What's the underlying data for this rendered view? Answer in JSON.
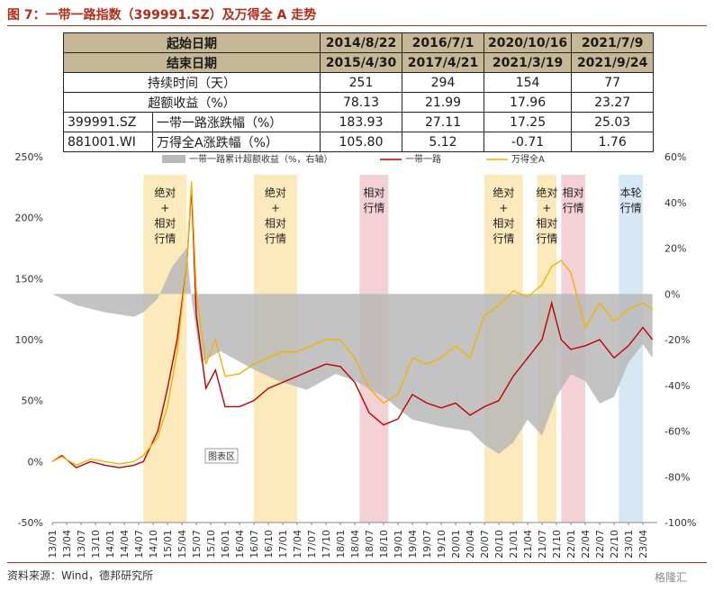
{
  "header": {
    "title": "图 7：一带一路指数（399991.SZ）及万得全 A 走势"
  },
  "table": {
    "rows": [
      {
        "label": "起始日期",
        "values": [
          "2014/8/22",
          "2016/7/1",
          "2020/10/16",
          "2021/7/9"
        ]
      },
      {
        "label": "结束日期",
        "values": [
          "2015/4/30",
          "2017/4/21",
          "2021/3/19",
          "2021/9/24"
        ]
      },
      {
        "label": "持续时间（天）",
        "values": [
          "251",
          "294",
          "154",
          "77"
        ]
      },
      {
        "label": "超额收益（%）",
        "values": [
          "78.13",
          "21.99",
          "17.96",
          "23.27"
        ]
      },
      {
        "code": "399991.SZ",
        "label": "一带一路涨跌幅（%）",
        "values": [
          "183.93",
          "27.11",
          "17.25",
          "25.03"
        ]
      },
      {
        "code": "881001.WI",
        "label": "万得全A涨跌幅（%）",
        "values": [
          "105.80",
          "5.12",
          "-0.71",
          "1.76"
        ]
      }
    ]
  },
  "footer": {
    "source": "资料来源：Wind，德邦研究所",
    "watermark": "格隆汇"
  },
  "chart_data": {
    "type": "line",
    "legend": [
      "一带一路累计超额收益（%，右轴）",
      "一带一路",
      "万得全A"
    ],
    "legend_placement": "top",
    "colors": {
      "excess": "#b9b9b9",
      "belt": "#c00000",
      "wind": "#f0b400",
      "band_yellow": "#fbe6b0",
      "band_red": "#f2c9cf",
      "band_blue": "#cfe4f2"
    },
    "left_axis": {
      "range": [
        -50,
        250
      ],
      "ticks": [
        "-50%",
        "0%",
        "50%",
        "100%",
        "150%",
        "200%",
        "250%"
      ]
    },
    "right_axis": {
      "range": [
        -100,
        60
      ],
      "ticks": [
        "-100%",
        "-80%",
        "-60%",
        "-40%",
        "-20%",
        "0%",
        "20%",
        "40%",
        "60%"
      ]
    },
    "x_ticks": [
      "13/01",
      "13/04",
      "13/07",
      "13/10",
      "14/01",
      "14/04",
      "14/07",
      "14/10",
      "15/01",
      "15/04",
      "15/07",
      "15/10",
      "16/01",
      "16/04",
      "16/07",
      "16/10",
      "17/01",
      "17/04",
      "17/07",
      "17/10",
      "18/01",
      "18/04",
      "18/07",
      "18/10",
      "19/01",
      "19/04",
      "19/07",
      "19/10",
      "20/01",
      "20/04",
      "20/07",
      "20/10",
      "21/01",
      "21/04",
      "21/07",
      "21/10",
      "22/01",
      "22/04",
      "22/07",
      "22/10",
      "23/01",
      "23/04"
    ],
    "x_end": "23/07",
    "bands": [
      {
        "start": "14/08",
        "end": "15/05",
        "color": "yellow",
        "label": [
          "绝对",
          "+",
          "相对",
          "行情"
        ]
      },
      {
        "start": "16/07",
        "end": "17/04",
        "color": "yellow",
        "label": [
          "绝对",
          "+",
          "相对",
          "行情"
        ]
      },
      {
        "start": "18/05",
        "end": "18/11",
        "color": "red",
        "label": [
          "相对",
          "行情"
        ]
      },
      {
        "start": "20/07",
        "end": "21/03",
        "color": "yellow",
        "label": [
          "绝对",
          "+",
          "相对",
          "行情"
        ]
      },
      {
        "start": "21/06",
        "end": "21/10",
        "color": "yellow",
        "label": [
          "绝对",
          "+",
          "相对",
          "行情"
        ]
      },
      {
        "start": "21/11",
        "end": "22/04",
        "color": "red",
        "label": [
          "相对",
          "行情"
        ]
      },
      {
        "start": "22/11",
        "end": "23/04",
        "color": "blue",
        "label": [
          "本轮",
          "行情"
        ]
      }
    ],
    "tooltip": "图表区",
    "series": [
      {
        "name": "一带一路",
        "axis": "left",
        "points": [
          [
            "13/01",
            0
          ],
          [
            "13/03",
            5
          ],
          [
            "13/06",
            -5
          ],
          [
            "13/09",
            0
          ],
          [
            "13/12",
            -3
          ],
          [
            "14/03",
            -5
          ],
          [
            "14/06",
            -3
          ],
          [
            "14/08",
            0
          ],
          [
            "14/11",
            25
          ],
          [
            "15/01",
            60
          ],
          [
            "15/03",
            100
          ],
          [
            "15/05",
            160
          ],
          [
            "15/06",
            225
          ],
          [
            "15/07",
            120
          ],
          [
            "15/09",
            60
          ],
          [
            "15/11",
            75
          ],
          [
            "16/01",
            45
          ],
          [
            "16/04",
            45
          ],
          [
            "16/07",
            50
          ],
          [
            "16/10",
            60
          ],
          [
            "17/01",
            65
          ],
          [
            "17/04",
            70
          ],
          [
            "17/07",
            75
          ],
          [
            "17/10",
            80
          ],
          [
            "18/01",
            78
          ],
          [
            "18/04",
            65
          ],
          [
            "18/07",
            40
          ],
          [
            "18/10",
            30
          ],
          [
            "19/01",
            35
          ],
          [
            "19/04",
            55
          ],
          [
            "19/07",
            48
          ],
          [
            "19/10",
            44
          ],
          [
            "20/01",
            48
          ],
          [
            "20/04",
            38
          ],
          [
            "20/07",
            45
          ],
          [
            "20/10",
            50
          ],
          [
            "21/01",
            70
          ],
          [
            "21/04",
            85
          ],
          [
            "21/07",
            100
          ],
          [
            "21/09",
            130
          ],
          [
            "21/11",
            100
          ],
          [
            "22/01",
            92
          ],
          [
            "22/04",
            95
          ],
          [
            "22/07",
            100
          ],
          [
            "22/10",
            85
          ],
          [
            "23/01",
            95
          ],
          [
            "23/04",
            110
          ],
          [
            "23/06",
            100
          ]
        ]
      },
      {
        "name": "万得全A",
        "axis": "left",
        "points": [
          [
            "13/01",
            0
          ],
          [
            "13/03",
            4
          ],
          [
            "13/06",
            -3
          ],
          [
            "13/09",
            2
          ],
          [
            "13/12",
            0
          ],
          [
            "14/03",
            -2
          ],
          [
            "14/06",
            0
          ],
          [
            "14/08",
            5
          ],
          [
            "14/11",
            20
          ],
          [
            "15/01",
            45
          ],
          [
            "15/03",
            90
          ],
          [
            "15/05",
            160
          ],
          [
            "15/06",
            230
          ],
          [
            "15/07",
            140
          ],
          [
            "15/09",
            80
          ],
          [
            "15/11",
            100
          ],
          [
            "16/01",
            70
          ],
          [
            "16/04",
            72
          ],
          [
            "16/07",
            80
          ],
          [
            "16/10",
            85
          ],
          [
            "17/01",
            90
          ],
          [
            "17/04",
            90
          ],
          [
            "17/07",
            95
          ],
          [
            "17/10",
            100
          ],
          [
            "18/01",
            100
          ],
          [
            "18/04",
            85
          ],
          [
            "18/07",
            60
          ],
          [
            "18/10",
            48
          ],
          [
            "19/01",
            55
          ],
          [
            "19/04",
            85
          ],
          [
            "19/07",
            80
          ],
          [
            "19/10",
            85
          ],
          [
            "20/01",
            95
          ],
          [
            "20/04",
            85
          ],
          [
            "20/07",
            120
          ],
          [
            "20/10",
            128
          ],
          [
            "21/01",
            140
          ],
          [
            "21/04",
            135
          ],
          [
            "21/07",
            145
          ],
          [
            "21/09",
            160
          ],
          [
            "21/11",
            165
          ],
          [
            "22/01",
            155
          ],
          [
            "22/04",
            110
          ],
          [
            "22/07",
            130
          ],
          [
            "22/10",
            115
          ],
          [
            "23/01",
            125
          ],
          [
            "23/04",
            130
          ],
          [
            "23/06",
            125
          ]
        ]
      },
      {
        "name": "一带一路累计超额收益（%，右轴）",
        "axis": "right",
        "points": [
          [
            "13/01",
            0
          ],
          [
            "13/06",
            -5
          ],
          [
            "13/12",
            -8
          ],
          [
            "14/06",
            -10
          ],
          [
            "14/08",
            -8
          ],
          [
            "14/11",
            -2
          ],
          [
            "15/02",
            12
          ],
          [
            "15/05",
            20
          ],
          [
            "15/06",
            -2
          ],
          [
            "15/08",
            -30
          ],
          [
            "15/12",
            -25
          ],
          [
            "16/06",
            -32
          ],
          [
            "16/12",
            -38
          ],
          [
            "17/06",
            -42
          ],
          [
            "17/12",
            -35
          ],
          [
            "18/04",
            -38
          ],
          [
            "18/10",
            -45
          ],
          [
            "19/04",
            -55
          ],
          [
            "19/10",
            -58
          ],
          [
            "20/04",
            -60
          ],
          [
            "20/07",
            -66
          ],
          [
            "20/10",
            -70
          ],
          [
            "21/01",
            -65
          ],
          [
            "21/04",
            -55
          ],
          [
            "21/07",
            -62
          ],
          [
            "21/10",
            -45
          ],
          [
            "22/01",
            -35
          ],
          [
            "22/04",
            -38
          ],
          [
            "22/07",
            -48
          ],
          [
            "22/10",
            -45
          ],
          [
            "23/01",
            -30
          ],
          [
            "23/04",
            -22
          ],
          [
            "23/06",
            -28
          ]
        ]
      }
    ]
  }
}
